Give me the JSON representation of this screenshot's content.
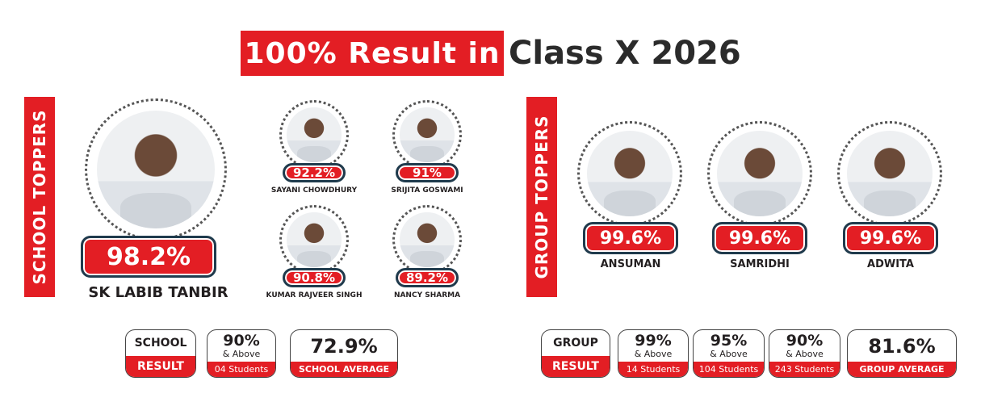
{
  "title": {
    "highlight": "100% Result in",
    "rest": "Class X 2026"
  },
  "school_toppers": {
    "label": "SCHOOL TOPPERS",
    "main": {
      "name": "SK LABIB TANBIR",
      "score": "98.2%"
    },
    "others": [
      {
        "name": "SAYANI CHOWDHURY",
        "score": "92.2%"
      },
      {
        "name": "SRIJITA GOSWAMI",
        "score": "91%"
      },
      {
        "name": "KUMAR RAJVEER SINGH",
        "score": "90.8%"
      },
      {
        "name": "NANCY SHARMA",
        "score": "89.2%"
      }
    ]
  },
  "group_toppers": {
    "label": "GROUP TOPPERS",
    "students": [
      {
        "name": "ANSUMAN",
        "score": "99.6%"
      },
      {
        "name": "SAMRIDHI",
        "score": "99.6%"
      },
      {
        "name": "ADWITA",
        "score": "99.6%"
      }
    ]
  },
  "school_result": {
    "label_top": "SCHOOL",
    "label_bottom": "RESULT",
    "stats": [
      {
        "value": "90%",
        "sub": "& Above",
        "count": "04 Students"
      }
    ],
    "average": {
      "value": "72.9%",
      "label": "SCHOOL AVERAGE"
    }
  },
  "group_result": {
    "label_top": "GROUP",
    "label_bottom": "RESULT",
    "stats": [
      {
        "value": "99%",
        "sub": "& Above",
        "count": "14 Students"
      },
      {
        "value": "95%",
        "sub": "& Above",
        "count": "104 Students"
      },
      {
        "value": "90%",
        "sub": "& Above",
        "count": "243 Students"
      }
    ],
    "average": {
      "value": "81.6%",
      "label": "GROUP AVERAGE"
    }
  },
  "colors": {
    "accent": "#e31e24",
    "dark": "#231f20",
    "badge_border": "#1f3b4d"
  }
}
